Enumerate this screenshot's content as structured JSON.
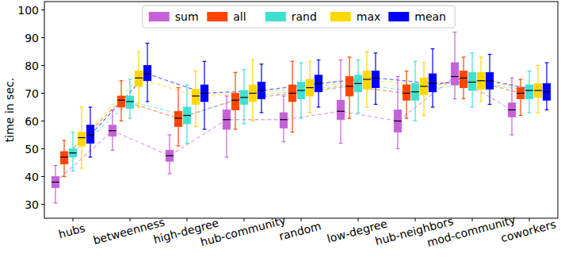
{
  "chart_data": {
    "type": "box",
    "y_label": "time in sec.",
    "categories": [
      "hubs",
      "betweenness",
      "high-degree",
      "hub-community",
      "random",
      "low-degree",
      "hub-neighbors",
      "mod-community",
      "coworkers"
    ],
    "ylim": [
      25,
      103
    ],
    "yticks": [
      30,
      40,
      50,
      60,
      70,
      80,
      90,
      100
    ],
    "legend": "top",
    "grid": false,
    "series": [
      {
        "name": "sum",
        "color": "#c462d8",
        "min": [
          30.5,
          49.5,
          41,
          47,
          52.5,
          52,
          50,
          68,
          55
        ],
        "q1": [
          36,
          54.5,
          45.5,
          57,
          57.5,
          60.5,
          56,
          73,
          61.5
        ],
        "median": [
          38,
          56.5,
          47.5,
          60.5,
          60.5,
          63.5,
          60,
          76,
          64
        ],
        "q3": [
          40,
          58.5,
          49.5,
          64,
          63,
          67.5,
          64,
          81,
          66.5
        ],
        "max": [
          44,
          64,
          55,
          69,
          69,
          82,
          76,
          92,
          75.5
        ]
      },
      {
        "name": "all",
        "color": "#ff4500",
        "min": [
          40,
          60,
          51,
          57,
          56,
          61,
          61,
          68,
          62
        ],
        "q1": [
          44.5,
          65,
          58,
          64,
          67,
          69,
          67.5,
          72,
          68
        ],
        "median": [
          47,
          67.5,
          61,
          67.5,
          70,
          72.5,
          70,
          75.5,
          70
        ],
        "q3": [
          49,
          69,
          63.5,
          70,
          73,
          76,
          73,
          78,
          72
        ],
        "max": [
          53,
          74.5,
          72,
          77.5,
          81.5,
          83,
          78,
          83,
          75
        ]
      },
      {
        "name": "rand",
        "color": "#40e0d0",
        "min": [
          42,
          61,
          52,
          59,
          61,
          63,
          60,
          65,
          63
        ],
        "q1": [
          47,
          64.5,
          59,
          66,
          68,
          70.5,
          67.5,
          71,
          68
        ],
        "median": [
          48.5,
          67,
          62,
          68.5,
          71,
          73.5,
          70.5,
          74,
          71
        ],
        "q3": [
          50,
          69,
          65,
          71,
          74,
          76.5,
          73.5,
          77.5,
          73
        ],
        "max": [
          56,
          75,
          73,
          78.5,
          81,
          82,
          81.5,
          84.5,
          78
        ]
      },
      {
        "name": "max",
        "color": "#ffd700",
        "min": [
          43,
          65,
          58,
          60,
          63,
          65,
          62,
          67,
          63
        ],
        "q1": [
          51,
          72.5,
          66,
          67,
          69,
          71.5,
          69.5,
          71.5,
          68.5
        ],
        "median": [
          54,
          75.5,
          69,
          70,
          72,
          75,
          72.5,
          74.5,
          71
        ],
        "q3": [
          56,
          78,
          71.5,
          73,
          75,
          78,
          75.5,
          77.5,
          73.5
        ],
        "max": [
          65,
          85,
          78,
          82,
          81.5,
          85,
          81,
          83,
          80
        ]
      },
      {
        "name": "mean",
        "color": "#0000ff",
        "min": [
          47,
          67,
          57,
          63,
          65,
          66,
          65,
          66,
          64
        ],
        "q1": [
          52,
          74.5,
          67,
          68,
          70.5,
          72,
          70.5,
          71.5,
          67.5
        ],
        "median": [
          55,
          77,
          70,
          71,
          73.5,
          75.5,
          73.5,
          74.5,
          70.5
        ],
        "q3": [
          58.5,
          80,
          73,
          74,
          76.5,
          78,
          77,
          77.5,
          73.5
        ],
        "max": [
          65,
          88,
          81.5,
          80.5,
          82,
          84.5,
          86,
          84,
          81
        ]
      }
    ]
  }
}
